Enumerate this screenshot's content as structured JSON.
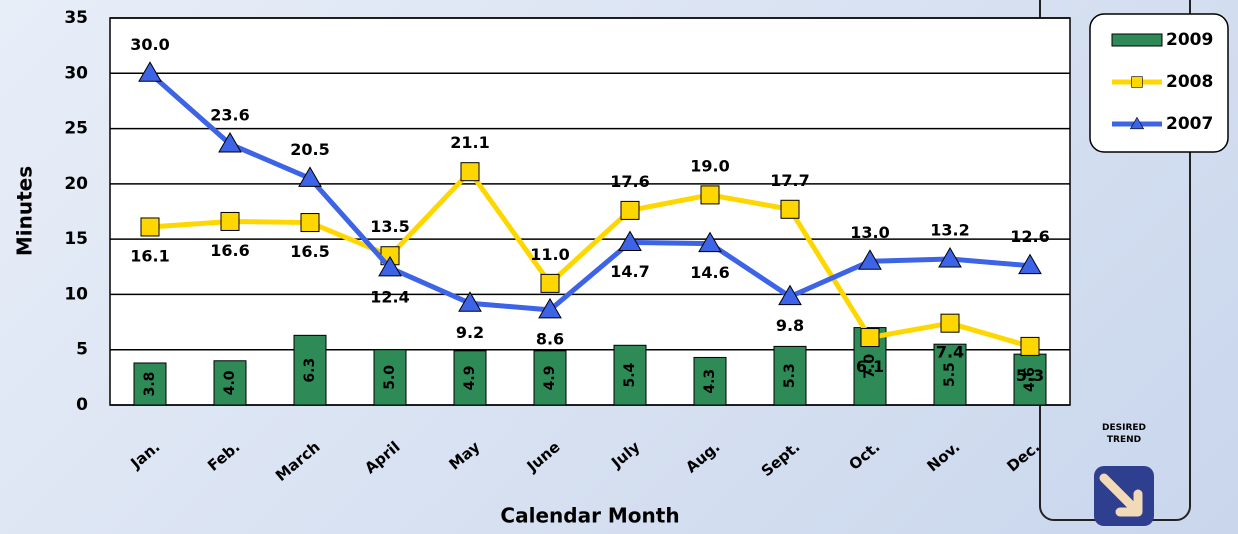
{
  "chart_data": {
    "type": "combo",
    "x_label": "Calendar Month",
    "y_label": "Minutes",
    "categories": [
      "Jan.",
      "Feb.",
      "March",
      "April",
      "May",
      "June",
      "July",
      "Aug.",
      "Sept.",
      "Oct.",
      "Nov.",
      "Dec."
    ],
    "series": [
      {
        "name": "2009",
        "type": "bar",
        "color": "#2e8b57",
        "values": [
          3.8,
          4.0,
          6.3,
          5.0,
          4.9,
          4.9,
          5.4,
          4.3,
          5.3,
          7.0,
          5.5,
          4.6
        ],
        "value_labels": [
          "3.8",
          "4.0",
          "6.3",
          "5.0",
          "4.9",
          "4.9",
          "5.4",
          "4.3",
          "5.3",
          "7.0",
          "5.5",
          "4.6"
        ]
      },
      {
        "name": "2008",
        "type": "line",
        "marker": "square",
        "color": "#ffd700",
        "values": [
          16.1,
          16.6,
          16.5,
          13.5,
          21.1,
          11.0,
          17.6,
          19.0,
          17.7,
          6.1,
          7.4,
          5.3
        ],
        "value_labels": [
          "16.1",
          "16.6",
          "16.5",
          "13.5",
          "21.1",
          "11.0",
          "17.6",
          "19.0",
          "17.7",
          "6.1",
          "7.4",
          "5.3"
        ]
      },
      {
        "name": "2007",
        "type": "line",
        "marker": "triangle",
        "color": "#3d63e6",
        "values": [
          30,
          23.6,
          20.5,
          12.4,
          9.2,
          8.6,
          14.7,
          14.6,
          9.8,
          13,
          13.2,
          12.6
        ],
        "value_labels": [
          "30.0",
          "23.6",
          "20.5",
          "12.4",
          "9.2",
          "8.6",
          "14.7",
          "14.6",
          "9.8",
          "13.0",
          "13.2",
          "12.6"
        ]
      }
    ],
    "ylim": [
      0,
      35
    ],
    "yticks": [
      0,
      5,
      10,
      15,
      20,
      25,
      30,
      35
    ],
    "grid": true,
    "legend": "upper right",
    "annotation": "DESIRED TREND"
  }
}
